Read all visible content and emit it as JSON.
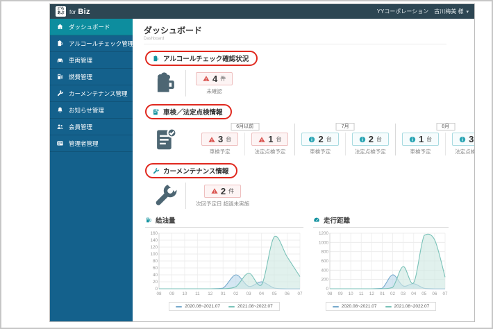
{
  "topbar": {
    "logo_top": "どら",
    "logo_bottom": "あぷ",
    "product_prefix": "for",
    "product_name": "Biz",
    "user_label": "YYコーポレーション　古川梅美 様",
    "caret": "▾"
  },
  "sidebar": {
    "items": [
      {
        "label": "ダッシュボード",
        "icon": "home",
        "active": true
      },
      {
        "label": "アルコールチェック管理",
        "icon": "beer-mug",
        "active": false
      },
      {
        "label": "車両管理",
        "icon": "car",
        "active": false
      },
      {
        "label": "燃費管理",
        "icon": "fuel-pump",
        "active": false
      },
      {
        "label": "カーメンテナンス管理",
        "icon": "wrench",
        "active": false
      },
      {
        "label": "お知らせ管理",
        "icon": "bell",
        "active": false
      },
      {
        "label": "会員管理",
        "icon": "users",
        "active": false
      },
      {
        "label": "管理者管理",
        "icon": "admin-card",
        "active": false
      }
    ]
  },
  "page": {
    "title": "ダッシュボード",
    "subtitle": "Dashboard"
  },
  "sections": {
    "alcohol": {
      "title": "アルコールチェック確認状況",
      "badge": {
        "count": "4",
        "unit": "件"
      },
      "caption": "未確認"
    },
    "inspection": {
      "title": "車検／法定点検情報",
      "groups": [
        {
          "month": "6月以前",
          "items": [
            {
              "type": "warn",
              "count": "3",
              "unit": "台",
              "caption": "車検予定"
            },
            {
              "type": "warn",
              "count": "1",
              "unit": "台",
              "caption": "法定点検予定"
            }
          ]
        },
        {
          "month": "7月",
          "items": [
            {
              "type": "info",
              "count": "2",
              "unit": "台",
              "caption": "車検予定"
            },
            {
              "type": "info",
              "count": "2",
              "unit": "台",
              "caption": "法定点検予定"
            }
          ]
        },
        {
          "month": "8月",
          "items": [
            {
              "type": "info",
              "count": "1",
              "unit": "台",
              "caption": "車検予定"
            },
            {
              "type": "info",
              "count": "3",
              "unit": "台",
              "caption": "法定点検予定"
            }
          ]
        }
      ]
    },
    "maintenance": {
      "title": "カーメンテナンス情報",
      "badge": {
        "count": "2",
        "unit": "件"
      },
      "caption": "次回予定日 超過未実施"
    }
  },
  "colors": {
    "accent_teal": "#0d8d9e",
    "sidebar_blue": "#14618c",
    "topbar_slate": "#2d4653",
    "annotation_red": "#e0281e",
    "warn_red": "#d9534f",
    "series_blue": "#76a9cc",
    "series_teal": "#79c2b8"
  },
  "chart_data": [
    {
      "type": "area",
      "title": "給油量",
      "x": [
        "08",
        "09",
        "10",
        "11",
        "12",
        "01",
        "02",
        "03",
        "04",
        "05",
        "06",
        "07"
      ],
      "ylim": [
        0,
        160
      ],
      "ystep": 20,
      "grid": true,
      "legend_position": "bottom",
      "series": [
        {
          "name": "2020.08~2021.07",
          "color": "#76a9cc",
          "fill": "#bcd9ec",
          "values": [
            0,
            0,
            0,
            0,
            0,
            2,
            40,
            7,
            20,
            2,
            0,
            0
          ]
        },
        {
          "name": "2021.08~2022.07",
          "color": "#79c2b8",
          "fill": "#cfe9e2",
          "values": [
            0,
            0,
            0,
            0,
            0,
            0,
            6,
            45,
            11,
            150,
            92,
            35
          ]
        }
      ]
    },
    {
      "type": "area",
      "title": "走行距離",
      "x": [
        "08",
        "09",
        "10",
        "11",
        "12",
        "01",
        "02",
        "03",
        "04",
        "05",
        "06",
        "07"
      ],
      "ylim": [
        0,
        1200
      ],
      "ystep": 200,
      "grid": true,
      "legend_position": "bottom",
      "series": [
        {
          "name": "2020.08~2021.07",
          "color": "#76a9cc",
          "fill": "#bcd9ec",
          "values": [
            0,
            0,
            0,
            0,
            0,
            10,
            300,
            60,
            110,
            10,
            0,
            0
          ]
        },
        {
          "name": "2021.08~2022.07",
          "color": "#79c2b8",
          "fill": "#cfe9e2",
          "values": [
            0,
            0,
            0,
            0,
            0,
            0,
            30,
            480,
            130,
            1150,
            1060,
            250
          ]
        }
      ]
    }
  ]
}
